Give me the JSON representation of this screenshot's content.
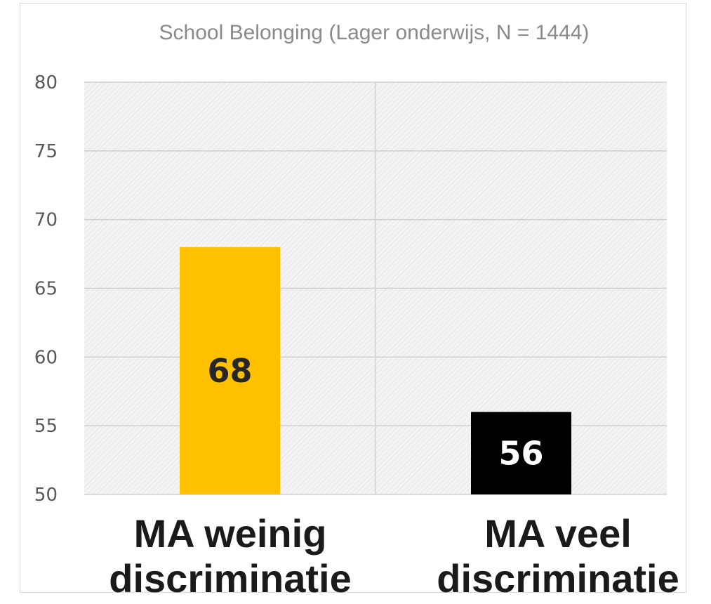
{
  "chart_data": {
    "type": "bar",
    "title": "School Belonging (Lager onderwijs, N = 1444)",
    "categories": [
      "MA weinig discriminatie",
      "MA veel discriminatie"
    ],
    "category_lines": [
      [
        "MA weinig",
        "discriminatie"
      ],
      [
        "MA veel",
        "discriminatie"
      ]
    ],
    "values": [
      68,
      56
    ],
    "value_labels": [
      "68",
      "56"
    ],
    "bar_colors": [
      "#ffc000",
      "#000000"
    ],
    "bar_label_colors": [
      "#262626",
      "#ffffff"
    ],
    "ylim": [
      50,
      80
    ],
    "yticks": [
      50,
      55,
      60,
      65,
      70,
      75,
      80
    ],
    "xlabel": "",
    "ylabel": "",
    "grid": true,
    "legend": "none"
  }
}
